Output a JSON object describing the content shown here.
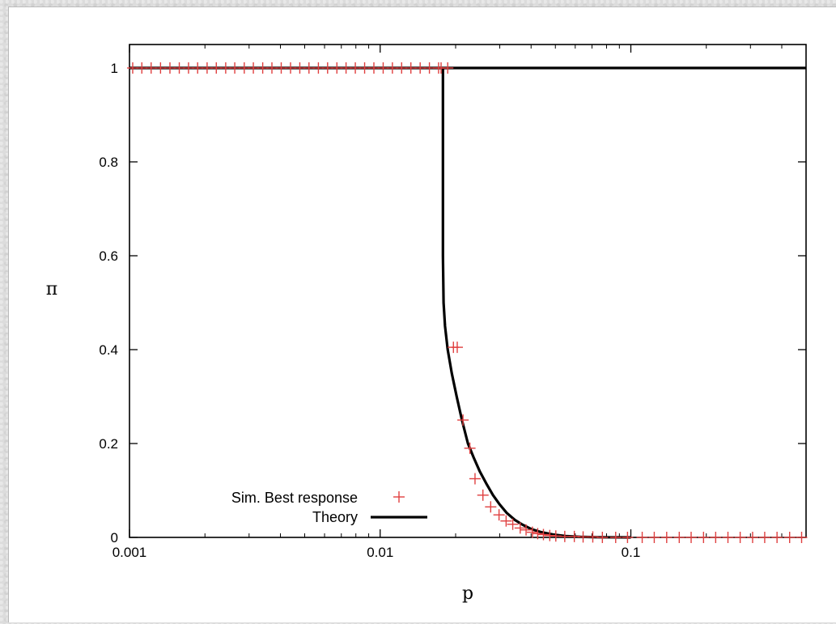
{
  "chart_data": {
    "type": "scatter",
    "xlabel": "p",
    "ylabel": "π",
    "xscale": "log",
    "xlim": [
      0.001,
      0.5
    ],
    "ylim": [
      0,
      1.05
    ],
    "xticks": [
      0.001,
      0.01,
      0.1
    ],
    "xtick_labels": [
      "0.001",
      "0.01",
      "0.1"
    ],
    "yticks": [
      0,
      0.2,
      0.4,
      0.6,
      0.8,
      1
    ],
    "ytick_labels": [
      "0",
      "0.2",
      "0.4",
      "0.6",
      "0.8",
      "1"
    ],
    "grid": false,
    "legend_position": "bottom-left",
    "series": [
      {
        "name": "Sim. Best response",
        "kind": "points",
        "marker": "plus",
        "color": "#e04040",
        "x": [
          0.00103,
          0.00112,
          0.00122,
          0.00133,
          0.00145,
          0.00158,
          0.00172,
          0.00187,
          0.00204,
          0.00222,
          0.00242,
          0.00263,
          0.00287,
          0.00312,
          0.0034,
          0.0037,
          0.00403,
          0.00439,
          0.00478,
          0.0052,
          0.00567,
          0.00617,
          0.00672,
          0.00731,
          0.00796,
          0.00867,
          0.00944,
          0.01028,
          0.01119,
          0.01218,
          0.01326,
          0.01444,
          0.01572,
          0.0171,
          0.0175,
          0.0186,
          0.0196,
          0.0203,
          0.0214,
          0.0228,
          0.0239,
          0.0257,
          0.0276,
          0.0298,
          0.0318,
          0.0338,
          0.0362,
          0.0382,
          0.0405,
          0.0425,
          0.0448,
          0.0475,
          0.0502,
          0.0545,
          0.0595,
          0.0645,
          0.0705,
          0.077,
          0.087,
          0.097,
          0.111,
          0.124,
          0.139,
          0.156,
          0.174,
          0.195,
          0.218,
          0.244,
          0.273,
          0.306,
          0.342,
          0.383,
          0.43,
          0.48
        ],
        "y": [
          1,
          1,
          1,
          1,
          1,
          1,
          1,
          1,
          1,
          1,
          1,
          1,
          1,
          1,
          1,
          1,
          1,
          1,
          1,
          1,
          1,
          1,
          1,
          1,
          1,
          1,
          1,
          1,
          1,
          1,
          1,
          1,
          1,
          1,
          1,
          1,
          0.405,
          0.405,
          0.25,
          0.19,
          0.125,
          0.09,
          0.065,
          0.048,
          0.035,
          0.028,
          0.02,
          0.016,
          0.011,
          0.008,
          0.006,
          0.004,
          0.003,
          0.002,
          0.002,
          0.001,
          0.001,
          0,
          0,
          0,
          0,
          0,
          0,
          0,
          0,
          0,
          0,
          0,
          0,
          0,
          0,
          0,
          0,
          0
        ]
      },
      {
        "name": "Theory",
        "kind": "line",
        "color": "#000000",
        "segments": [
          {
            "x": [
              0.001,
              0.5
            ],
            "y": [
              1,
              1
            ]
          },
          {
            "x": [
              0.0178,
              0.0178,
              0.0178,
              0.01785,
              0.0179,
              0.01815,
              0.0186,
              0.0193,
              0.0202,
              0.0212,
              0.0224,
              0.0236,
              0.025,
              0.0265,
              0.0282,
              0.03,
              0.032,
              0.0345,
              0.037,
              0.04,
              0.044,
              0.049,
              0.055,
              0.063,
              0.075,
              0.1
            ],
            "y": [
              1,
              0.8,
              0.6,
              0.55,
              0.5,
              0.45,
              0.4,
              0.35,
              0.3,
              0.25,
              0.2,
              0.17,
              0.14,
              0.115,
              0.09,
              0.07,
              0.052,
              0.037,
              0.027,
              0.018,
              0.011,
              0.006,
              0.003,
              0.0012,
              0.0003,
              0
            ]
          }
        ]
      }
    ]
  }
}
